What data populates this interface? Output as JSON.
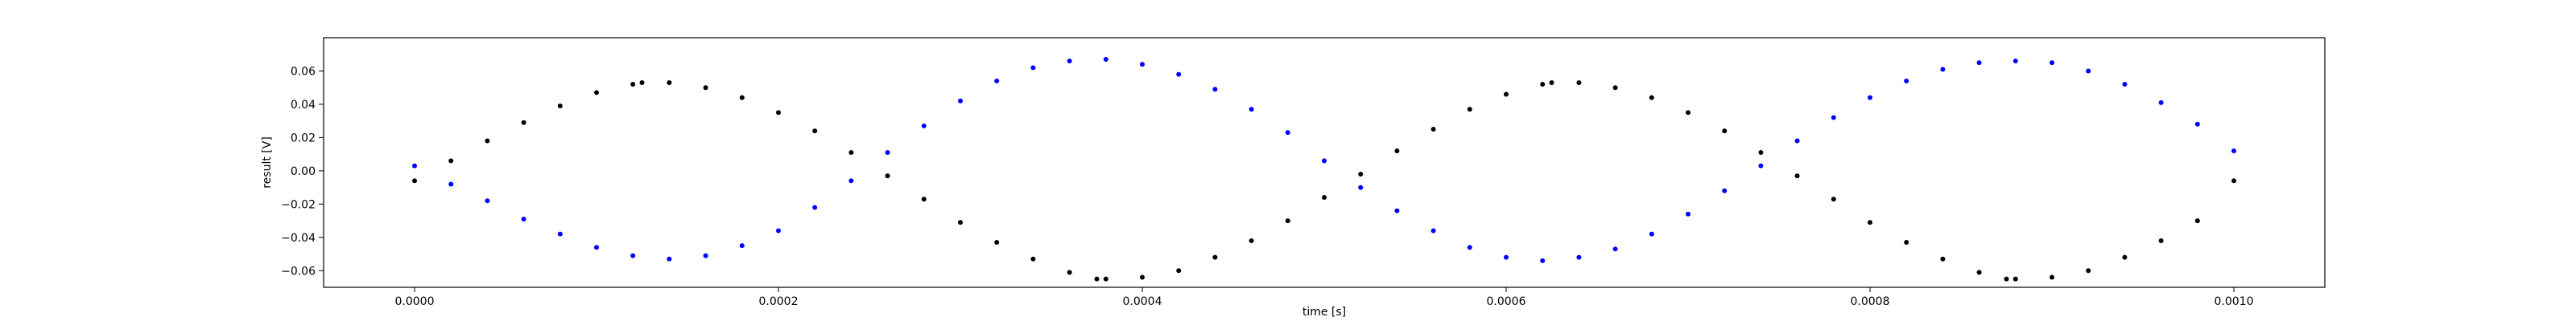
{
  "chart_data": {
    "type": "scatter",
    "title": "",
    "xlabel": "time [s]",
    "ylabel": "result [V]",
    "xlim": [
      -5e-05,
      0.00105
    ],
    "ylim": [
      -0.07,
      0.08
    ],
    "x_ticks": [
      0.0,
      0.0002,
      0.0004,
      0.0006,
      0.0008,
      0.001
    ],
    "x_tick_labels": [
      "0.0000",
      "0.0002",
      "0.0004",
      "0.0006",
      "0.0008",
      "0.0010"
    ],
    "y_ticks": [
      -0.06,
      -0.04,
      -0.02,
      0.0,
      0.02,
      0.04,
      0.06
    ],
    "y_tick_labels": [
      "−0.06",
      "−0.04",
      "−0.02",
      "0.00",
      "0.02",
      "0.04",
      "0.06"
    ],
    "grid": false,
    "legend": "none",
    "series": [
      {
        "color": "#000000",
        "points": [
          [
            0.0,
            -0.006
          ],
          [
            2e-05,
            0.006
          ],
          [
            4e-05,
            0.018
          ],
          [
            6e-05,
            0.029
          ],
          [
            8e-05,
            0.039
          ],
          [
            0.0001,
            0.047
          ],
          [
            0.00012,
            0.052
          ],
          [
            0.000125,
            0.053
          ],
          [
            0.00014,
            0.053
          ],
          [
            0.00016,
            0.05
          ],
          [
            0.00018,
            0.044
          ],
          [
            0.0002,
            0.035
          ],
          [
            0.00022,
            0.024
          ],
          [
            0.00024,
            0.011
          ],
          [
            0.00026,
            -0.003
          ],
          [
            0.00028,
            -0.017
          ],
          [
            0.0003,
            -0.031
          ],
          [
            0.00032,
            -0.043
          ],
          [
            0.00034,
            -0.053
          ],
          [
            0.00036,
            -0.061
          ],
          [
            0.000375,
            -0.065
          ],
          [
            0.00038,
            -0.065
          ],
          [
            0.0004,
            -0.064
          ],
          [
            0.00042,
            -0.06
          ],
          [
            0.00044,
            -0.052
          ],
          [
            0.00046,
            -0.042
          ],
          [
            0.00048,
            -0.03
          ],
          [
            0.0005,
            -0.016
          ],
          [
            0.00052,
            -0.002
          ],
          [
            0.00054,
            0.012
          ],
          [
            0.00056,
            0.025
          ],
          [
            0.00058,
            0.037
          ],
          [
            0.0006,
            0.046
          ],
          [
            0.00062,
            0.052
          ],
          [
            0.000625,
            0.053
          ],
          [
            0.00064,
            0.053
          ],
          [
            0.00066,
            0.05
          ],
          [
            0.00068,
            0.044
          ],
          [
            0.0007,
            0.035
          ],
          [
            0.00072,
            0.024
          ],
          [
            0.00074,
            0.011
          ],
          [
            0.00076,
            -0.003
          ],
          [
            0.00078,
            -0.017
          ],
          [
            0.0008,
            -0.031
          ],
          [
            0.00082,
            -0.043
          ],
          [
            0.00084,
            -0.053
          ],
          [
            0.00086,
            -0.061
          ],
          [
            0.000875,
            -0.065
          ],
          [
            0.00088,
            -0.065
          ],
          [
            0.0009,
            -0.064
          ],
          [
            0.00092,
            -0.06
          ],
          [
            0.00094,
            -0.052
          ],
          [
            0.00096,
            -0.042
          ],
          [
            0.00098,
            -0.03
          ],
          [
            0.001,
            -0.006
          ]
        ]
      },
      {
        "color": "#0000ff",
        "points": [
          [
            0.0,
            0.003
          ],
          [
            2e-05,
            -0.008
          ],
          [
            4e-05,
            -0.018
          ],
          [
            6e-05,
            -0.029
          ],
          [
            8e-05,
            -0.038
          ],
          [
            0.0001,
            -0.046
          ],
          [
            0.00012,
            -0.051
          ],
          [
            0.00014,
            -0.053
          ],
          [
            0.00016,
            -0.051
          ],
          [
            0.00018,
            -0.045
          ],
          [
            0.0002,
            -0.036
          ],
          [
            0.00022,
            -0.022
          ],
          [
            0.00024,
            -0.006
          ],
          [
            0.00026,
            0.011
          ],
          [
            0.00028,
            0.027
          ],
          [
            0.0003,
            0.042
          ],
          [
            0.00032,
            0.054
          ],
          [
            0.00034,
            0.062
          ],
          [
            0.00036,
            0.066
          ],
          [
            0.00038,
            0.067
          ],
          [
            0.0004,
            0.064
          ],
          [
            0.00042,
            0.058
          ],
          [
            0.00044,
            0.049
          ],
          [
            0.00046,
            0.037
          ],
          [
            0.00048,
            0.023
          ],
          [
            0.0005,
            0.006
          ],
          [
            0.00052,
            -0.01
          ],
          [
            0.00054,
            -0.024
          ],
          [
            0.00056,
            -0.036
          ],
          [
            0.00058,
            -0.046
          ],
          [
            0.0006,
            -0.052
          ],
          [
            0.00062,
            -0.054
          ],
          [
            0.00064,
            -0.052
          ],
          [
            0.00066,
            -0.047
          ],
          [
            0.00068,
            -0.038
          ],
          [
            0.0007,
            -0.026
          ],
          [
            0.00072,
            -0.012
          ],
          [
            0.00074,
            0.003
          ],
          [
            0.00076,
            0.018
          ],
          [
            0.00078,
            0.032
          ],
          [
            0.0008,
            0.044
          ],
          [
            0.00082,
            0.054
          ],
          [
            0.00084,
            0.061
          ],
          [
            0.00086,
            0.065
          ],
          [
            0.00088,
            0.066
          ],
          [
            0.0009,
            0.065
          ],
          [
            0.00092,
            0.06
          ],
          [
            0.00094,
            0.052
          ],
          [
            0.00096,
            0.041
          ],
          [
            0.00098,
            0.028
          ],
          [
            0.001,
            0.012
          ]
        ]
      }
    ]
  }
}
